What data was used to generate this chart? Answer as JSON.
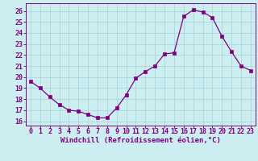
{
  "x": [
    0,
    1,
    2,
    3,
    4,
    5,
    6,
    7,
    8,
    9,
    10,
    11,
    12,
    13,
    14,
    15,
    16,
    17,
    18,
    19,
    20,
    21,
    22,
    23
  ],
  "y": [
    19.6,
    19.0,
    18.2,
    17.5,
    17.0,
    16.9,
    16.6,
    16.3,
    16.3,
    17.2,
    18.4,
    19.9,
    20.5,
    21.0,
    22.1,
    22.2,
    25.5,
    26.1,
    25.9,
    25.4,
    23.7,
    22.3,
    21.0,
    20.6
  ],
  "line_color": "#800080",
  "marker": "s",
  "markersize": 2.5,
  "bg_color": "#cceef0",
  "grid_color": "#aad8dc",
  "xlabel": "Windchill (Refroidissement éolien,°C)",
  "ylabel_ticks": [
    16,
    17,
    18,
    19,
    20,
    21,
    22,
    23,
    24,
    25,
    26
  ],
  "ylim": [
    15.6,
    26.7
  ],
  "xlim": [
    -0.5,
    23.5
  ],
  "tick_color": "#800080",
  "label_color": "#800080",
  "tick_fontsize": 6,
  "xlabel_fontsize": 6.5
}
